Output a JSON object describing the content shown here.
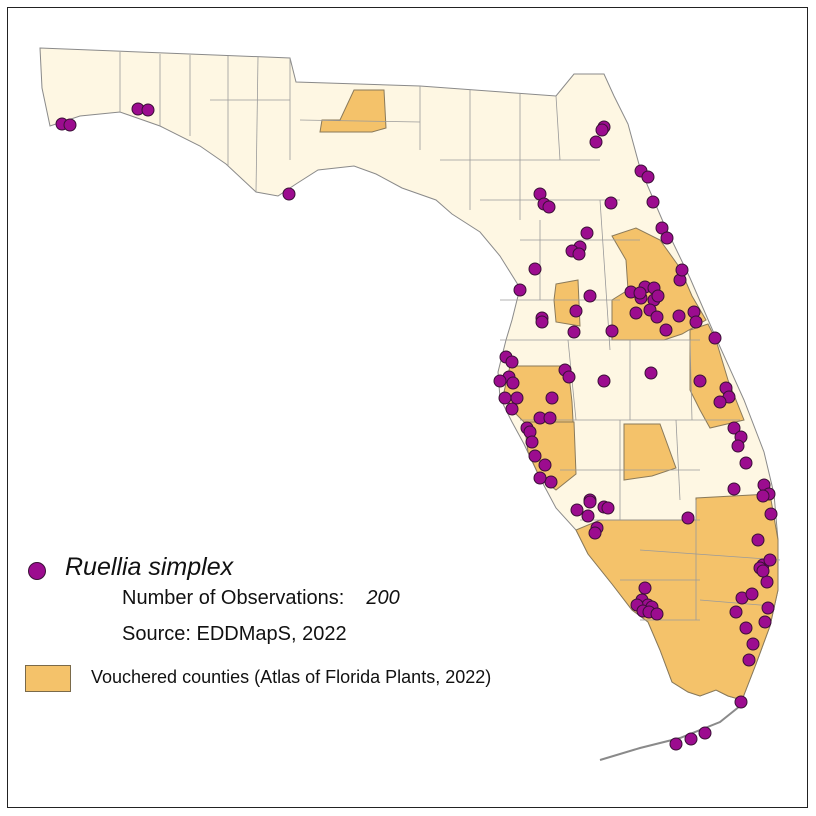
{
  "legend": {
    "species_name": "Ruellia simplex",
    "observations_label": "Number of Observations:",
    "observations_value": "200",
    "source": "Source: EDDMapS, 2022",
    "vouchered_label": "Vouchered counties (Atlas of Florida Plants, 2022)"
  },
  "colors": {
    "land": "#fef7e3",
    "vouchered": "#f4c26a",
    "county_border": "#9a9a9a",
    "observation_dot": "#9c0c8f",
    "dot_outline": "#3a1036"
  },
  "observations_note": "Observation points shown as purple dots across Florida",
  "observation_count_value": 200
}
